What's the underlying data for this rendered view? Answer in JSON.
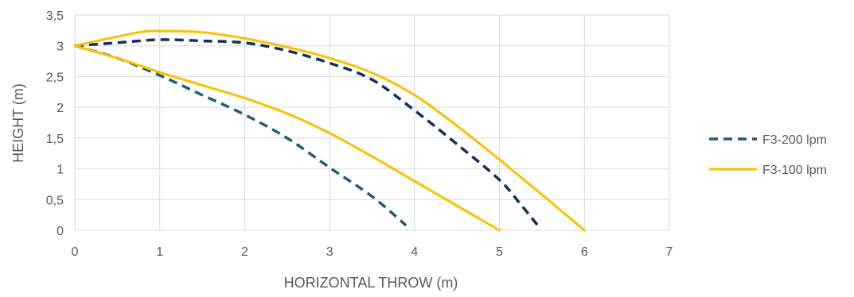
{
  "chart_data": {
    "type": "line",
    "title": "",
    "xlabel": "HORIZONTAL THROW (m)",
    "ylabel": "HEIGHT  (m)",
    "xlim": [
      0,
      7
    ],
    "ylim": [
      0,
      3.5
    ],
    "x_ticks": [
      0,
      1,
      2,
      3,
      4,
      5,
      6,
      7
    ],
    "x_tick_labels": [
      "0",
      "1",
      "2",
      "3",
      "4",
      "5",
      "6",
      "7"
    ],
    "y_ticks": [
      0,
      0.5,
      1,
      1.5,
      2,
      2.5,
      3,
      3.5
    ],
    "y_tick_labels": [
      "0",
      "0,5",
      "1",
      "1,5",
      "2",
      "2,5",
      "3",
      "3,5"
    ],
    "grid": true,
    "legend_position": "right",
    "series": [
      {
        "name": "F3-200 lpm",
        "color": "#1f5c7a",
        "dash": "dashed",
        "values": [
          [
            0,
            3
          ],
          [
            0.5,
            2.8
          ],
          [
            1,
            2.52
          ],
          [
            1.5,
            2.2
          ],
          [
            2,
            1.88
          ],
          [
            2.5,
            1.5
          ],
          [
            3,
            1.02
          ],
          [
            3.5,
            0.55
          ],
          [
            3.9,
            0.08
          ]
        ]
      },
      {
        "name": "F3-200 lpm",
        "color": "#162e5c",
        "dash": "dashed",
        "legend": false,
        "values": [
          [
            0,
            3
          ],
          [
            0.5,
            3.05
          ],
          [
            1,
            3.1
          ],
          [
            1.5,
            3.08
          ],
          [
            2,
            3.05
          ],
          [
            2.5,
            2.92
          ],
          [
            3,
            2.72
          ],
          [
            3.5,
            2.45
          ],
          [
            4,
            1.95
          ],
          [
            4.5,
            1.4
          ],
          [
            5,
            0.82
          ],
          [
            5.25,
            0.42
          ],
          [
            5.45,
            0.08
          ]
        ]
      },
      {
        "name": "F3-100 lpm",
        "color": "#fcc000",
        "dash": "solid",
        "values": [
          [
            0,
            3
          ],
          [
            0.5,
            2.8
          ],
          [
            1,
            2.57
          ],
          [
            1.5,
            2.36
          ],
          [
            2,
            2.15
          ],
          [
            2.5,
            1.9
          ],
          [
            3,
            1.58
          ],
          [
            3.5,
            1.2
          ],
          [
            4,
            0.8
          ],
          [
            4.5,
            0.4
          ],
          [
            5,
            0
          ]
        ]
      },
      {
        "name": "F3-100 lpm",
        "color": "#fcc000",
        "dash": "solid",
        "legend": false,
        "values": [
          [
            0,
            3
          ],
          [
            0.4,
            3.12
          ],
          [
            0.8,
            3.23
          ],
          [
            1,
            3.24
          ],
          [
            1.5,
            3.22
          ],
          [
            2,
            3.12
          ],
          [
            2.5,
            2.98
          ],
          [
            3,
            2.8
          ],
          [
            3.5,
            2.56
          ],
          [
            4,
            2.2
          ],
          [
            4.5,
            1.7
          ],
          [
            5,
            1.15
          ],
          [
            5.5,
            0.58
          ],
          [
            6,
            0
          ]
        ]
      }
    ]
  }
}
